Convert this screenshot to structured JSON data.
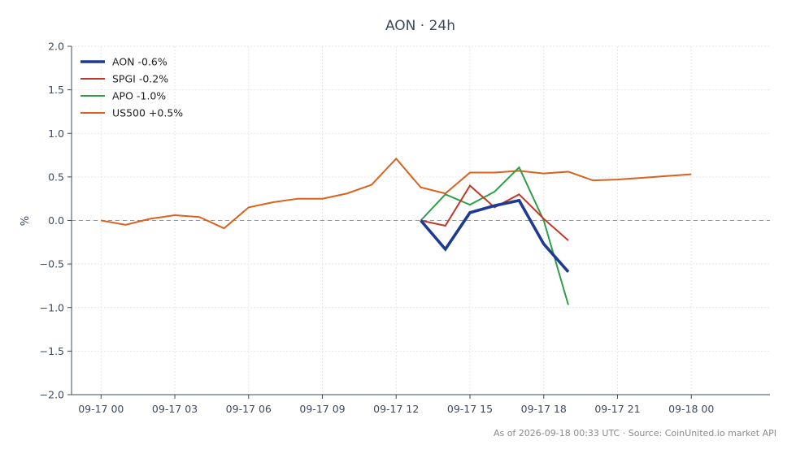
{
  "chart_data": {
    "type": "line",
    "title": "AON · 24h",
    "ylabel": "%",
    "xlabel": "",
    "ylim": [
      -2.0,
      2.0
    ],
    "xlim": [
      -1.2,
      27.2
    ],
    "yticks": [
      2.0,
      1.5,
      1.0,
      0.5,
      0.0,
      -0.5,
      -1.0,
      -1.5,
      -2.0
    ],
    "ytick_labels": [
      "2.0",
      "1.5",
      "1.0",
      "0.5",
      "0.0",
      "−0.5",
      "−1.0",
      "−1.5",
      "−2.0"
    ],
    "xticks": [
      0,
      3,
      6,
      9,
      12,
      15,
      18,
      21,
      24
    ],
    "xtick_labels": [
      "09-17 00",
      "09-17 03",
      "09-17 06",
      "09-17 09",
      "09-17 12",
      "09-17 15",
      "09-17 18",
      "09-17 21",
      "09-18 00"
    ],
    "grid": true,
    "zero_line": true,
    "legend": "top-left",
    "series": [
      {
        "name": "AON -0.6%",
        "color": "#1f3a93",
        "emphasis": true,
        "x": [
          13,
          14,
          15,
          16,
          17,
          18,
          19
        ],
        "values": [
          0.0,
          -0.33,
          0.09,
          0.17,
          0.23,
          -0.27,
          -0.59
        ]
      },
      {
        "name": "SPGI -0.2%",
        "color": "#c0392b",
        "x": [
          13,
          14,
          15,
          16,
          17,
          18,
          19
        ],
        "values": [
          0.0,
          -0.06,
          0.4,
          0.15,
          0.3,
          0.02,
          -0.23
        ]
      },
      {
        "name": "APO -1.0%",
        "color": "#2e9e48",
        "x": [
          13,
          14,
          15,
          16,
          17,
          18,
          19
        ],
        "values": [
          0.0,
          0.3,
          0.18,
          0.33,
          0.61,
          0.0,
          -0.97
        ]
      },
      {
        "name": "US500 +0.5%",
        "color": "#d9621e",
        "x": [
          0,
          1,
          2,
          3,
          4,
          5,
          6,
          7,
          8,
          9,
          10,
          11,
          12,
          13,
          14,
          15,
          16,
          17,
          18,
          19,
          20,
          21,
          22,
          23,
          24
        ],
        "values": [
          0.0,
          -0.05,
          0.02,
          0.06,
          0.04,
          -0.09,
          0.15,
          0.21,
          0.25,
          0.25,
          0.31,
          0.41,
          0.71,
          0.38,
          0.31,
          0.55,
          0.55,
          0.57,
          0.54,
          0.56,
          0.46,
          0.47,
          0.49,
          0.51,
          0.53
        ]
      }
    ],
    "footer": "As of 2026-09-18 00:33 UTC · Source: CoinUnited.io market API"
  },
  "colors": {
    "axis": "#3d4a5c",
    "grid": "#e6e6e6",
    "zero_line": "#8898aa"
  }
}
